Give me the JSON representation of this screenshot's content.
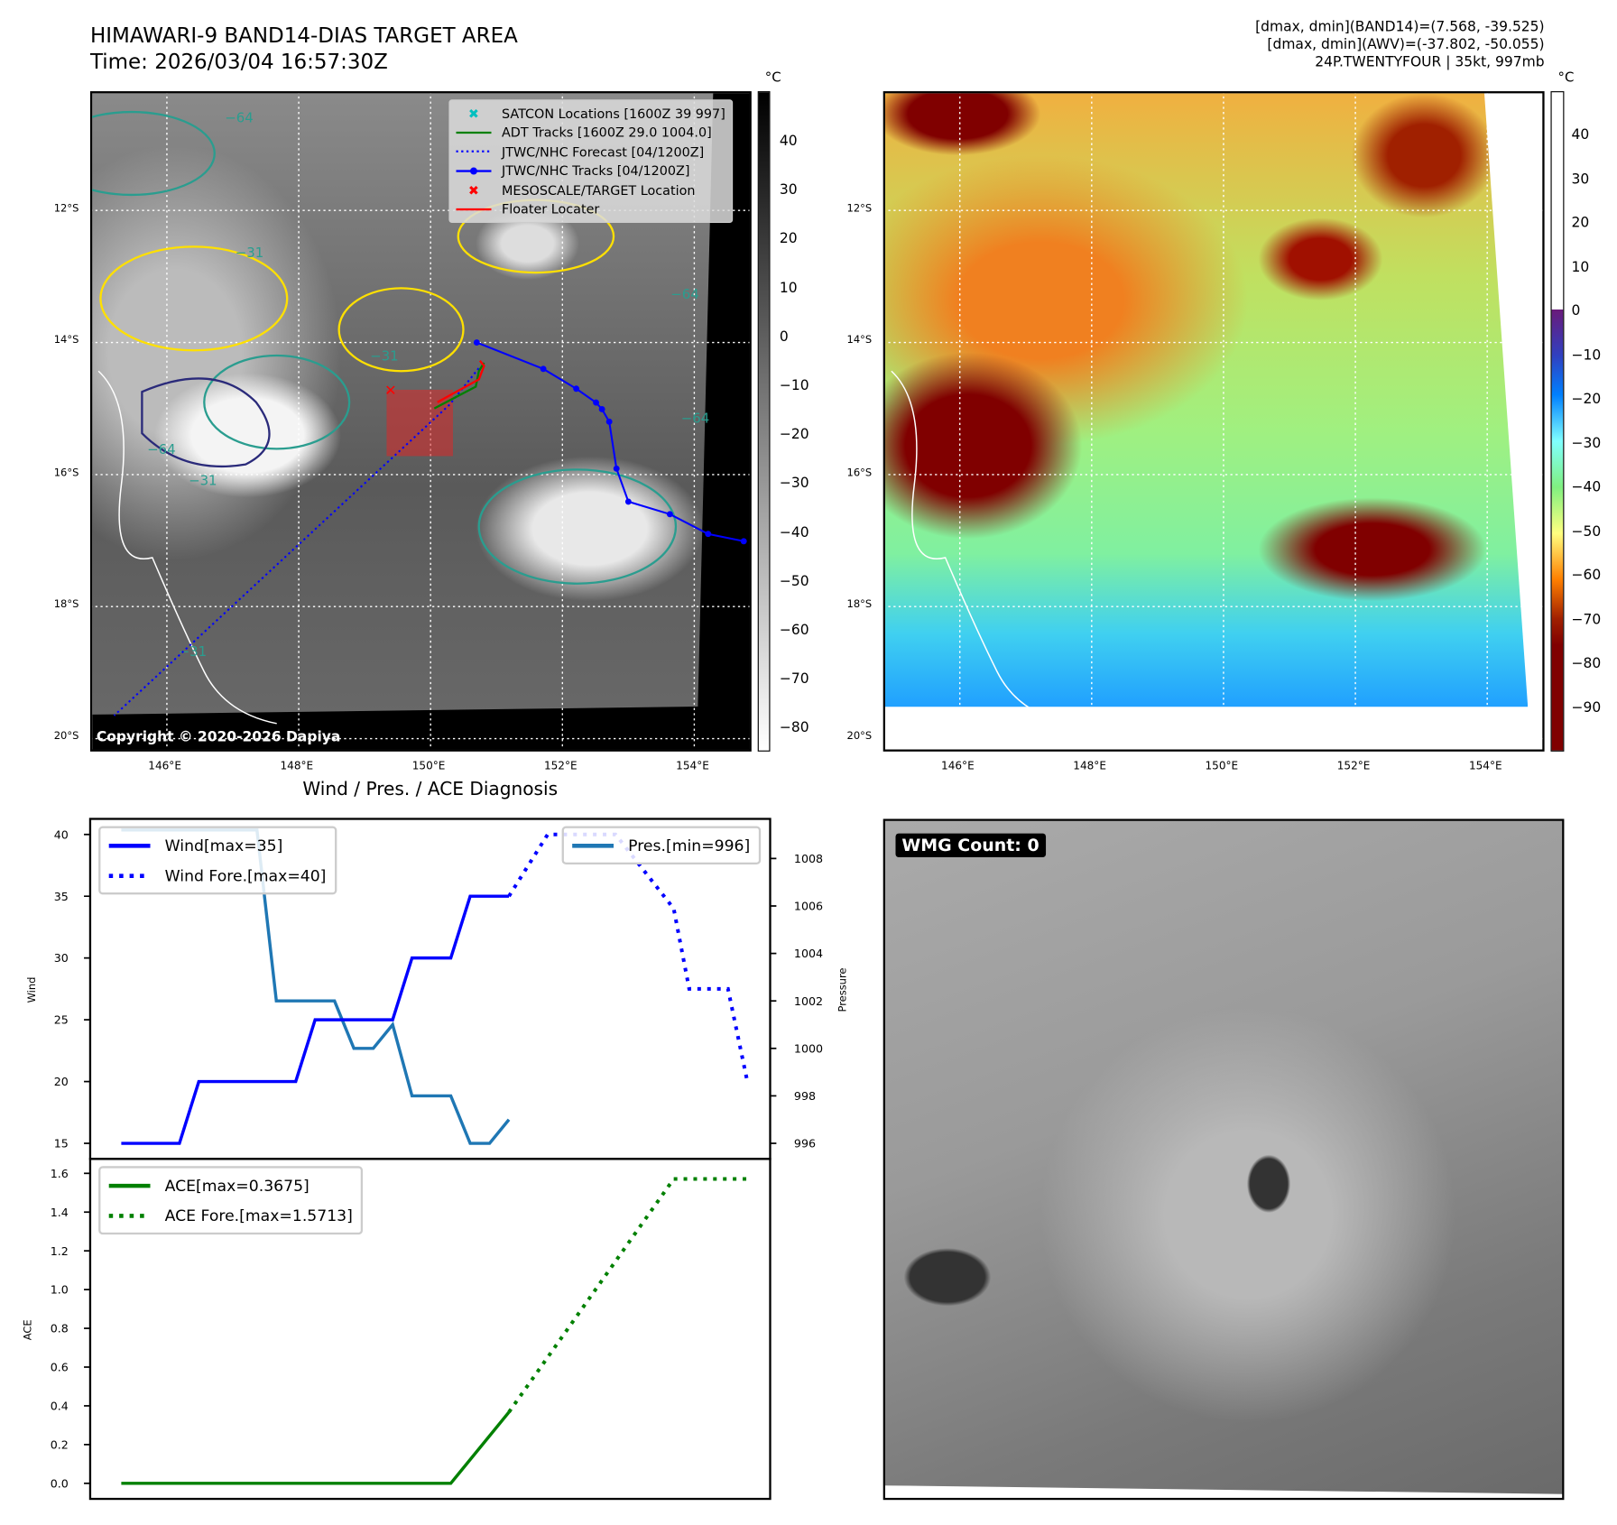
{
  "header": {
    "title": "HIMAWARI-9 BAND14-DIAS TARGET AREA",
    "time": "Time: 2026/03/04 16:57:30Z",
    "info_band14": "[dmax, dmin](BAND14)=(7.568, -39.525)",
    "info_awv": "[dmax, dmin](AWV)=(-37.802, -50.055)",
    "storm": "24P.TWENTYFOUR | 35kt, 997mb"
  },
  "map_left": {
    "unit": "°C",
    "colorbar_ticks": [
      "40",
      "30",
      "20",
      "10",
      "0",
      "−10",
      "−20",
      "−30",
      "−40",
      "−50",
      "−60",
      "−70",
      "−80"
    ],
    "lat_labels": [
      "12°S",
      "14°S",
      "16°S",
      "18°S",
      "20°S"
    ],
    "lon_labels": [
      "146°E",
      "148°E",
      "150°E",
      "152°E",
      "154°E"
    ],
    "copyright": "Copyright © 2020-2026 Dapiya",
    "contour_labels": [
      "−64",
      "−31",
      "−64",
      "−31",
      "−64",
      "−31",
      "−64",
      "−31"
    ],
    "legend": [
      {
        "label": "SATCON Locations [1600Z 39 997]",
        "color": "#00bfbf"
      },
      {
        "label": "ADT Tracks [1600Z 29.0 1004.0]",
        "color": "#008000"
      },
      {
        "label": "JTWC/NHC Forecast [04/1200Z]",
        "color": "#0000ff"
      },
      {
        "label": "JTWC/NHC Tracks [04/1200Z]",
        "color": "#0000ff"
      },
      {
        "label": "MESOSCALE/TARGET Location",
        "color": "#ff0000"
      },
      {
        "label": "Floater Locater",
        "color": "#ff0000"
      }
    ],
    "track_obs": [
      [
        150.7,
        14.0
      ],
      [
        151.71,
        14.4
      ],
      [
        152.21,
        14.7
      ],
      [
        152.51,
        14.91
      ],
      [
        152.6,
        15.01
      ],
      [
        152.71,
        15.2
      ],
      [
        152.82,
        15.91
      ],
      [
        153.0,
        16.41
      ],
      [
        153.63,
        16.6
      ],
      [
        154.21,
        16.9
      ],
      [
        154.75,
        17.01
      ]
    ],
    "track_forecast": [
      [
        150.73,
        14.39
      ],
      [
        150.29,
        14.94
      ],
      [
        145.2,
        19.65
      ]
    ],
    "target": [
      149.38,
      14.72
    ]
  },
  "map_right": {
    "unit": "°C",
    "colorbar_ticks": [
      "40",
      "30",
      "20",
      "10",
      "0",
      "−10",
      "−20",
      "−30",
      "−40",
      "−50",
      "−60",
      "−70",
      "−80",
      "−90"
    ],
    "lat_labels": [
      "12°S",
      "14°S",
      "16°S",
      "18°S",
      "20°S"
    ],
    "lon_labels": [
      "146°E",
      "148°E",
      "150°E",
      "152°E",
      "154°E"
    ]
  },
  "wmg": {
    "label": "WMG Count: 0"
  },
  "chart_data": {
    "type": "line",
    "title": "Wind / Pres. / ACE Diagnosis",
    "top": {
      "ylabel": "Wind",
      "y2label": "Pressure",
      "ylim": [
        15,
        40
      ],
      "y2lim": [
        996,
        1009.2
      ],
      "yticks": [
        "15",
        "20",
        "25",
        "30",
        "35",
        "40"
      ],
      "y2ticks": [
        "996",
        "998",
        "1000",
        "1002",
        "1004",
        "1006",
        "1008"
      ],
      "legend_left": [
        "Wind[max=35]",
        "Wind Fore.[max=40]"
      ],
      "legend_right": [
        "Pres.[min=996]"
      ],
      "series": [
        {
          "name": "Wind",
          "color": "#0000ff",
          "x": [
            0,
            3,
            4,
            9,
            10,
            14,
            15,
            17,
            18,
            20
          ],
          "values": [
            15,
            15,
            20,
            20,
            25,
            25,
            30,
            30,
            35,
            35
          ]
        },
        {
          "name": "Wind Fore.",
          "color": "#0000ff",
          "x": [
            20,
            22,
            25.5,
            28.5,
            29.3,
            31.3,
            32.3
          ],
          "values": [
            35,
            40,
            40,
            34,
            27.5,
            27.5,
            20
          ]
        },
        {
          "name": "Pres.",
          "color": "#1f77b4",
          "axis": "y2",
          "x": [
            0,
            7,
            8,
            11,
            12,
            13,
            14,
            15,
            17,
            18,
            19,
            20
          ],
          "values": [
            1009.2,
            1009.2,
            1002,
            1002,
            1000,
            1000,
            1001,
            998,
            998,
            996,
            996,
            997
          ]
        }
      ]
    },
    "bottom": {
      "ylabel": "ACE",
      "ylim": [
        0,
        1.6
      ],
      "yticks": [
        "0.0",
        "0.2",
        "0.4",
        "0.6",
        "0.8",
        "1.0",
        "1.2",
        "1.4",
        "1.6"
      ],
      "legend": [
        "ACE[max=0.3675]",
        "ACE Fore.[max=1.5713]"
      ],
      "series": [
        {
          "name": "ACE",
          "color": "#008000",
          "x": [
            0,
            17,
            20
          ],
          "values": [
            0,
            0,
            0.3675
          ]
        },
        {
          "name": "ACE Fore.",
          "color": "#008000",
          "x": [
            20,
            28.5,
            32.3
          ],
          "values": [
            0.3675,
            1.5713,
            1.5713
          ]
        }
      ]
    }
  }
}
